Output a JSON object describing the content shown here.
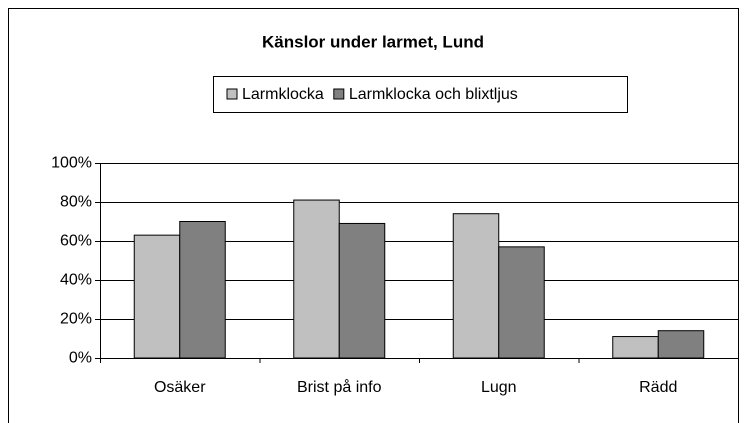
{
  "chart_data": {
    "type": "bar",
    "title": "Känslor under larmet, Lund",
    "categories": [
      "Osäker",
      "Brist på info",
      "Lugn",
      "Rädd"
    ],
    "series": [
      {
        "name": "Larmklocka",
        "color": "#c0c0c0",
        "values": [
          63,
          81,
          74,
          11
        ]
      },
      {
        "name": "Larmklocka och blixtljus",
        "color": "#808080",
        "values": [
          70,
          69,
          57,
          14
        ]
      }
    ],
    "ylim": [
      0,
      100
    ],
    "yticks": [
      {
        "value": 0,
        "label": "0%"
      },
      {
        "value": 20,
        "label": "20%"
      },
      {
        "value": 40,
        "label": "40%"
      },
      {
        "value": 60,
        "label": "60%"
      },
      {
        "value": 80,
        "label": "80%"
      },
      {
        "value": 100,
        "label": "100%"
      }
    ],
    "grid": true,
    "legend": "top"
  }
}
